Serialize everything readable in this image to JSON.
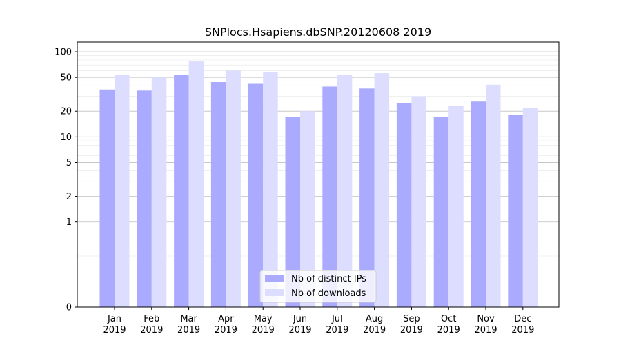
{
  "chart_data": {
    "type": "bar",
    "title": "SNPlocs.Hsapiens.dbSNP.20120608 2019",
    "xlabel": "",
    "ylabel": "",
    "y_scale": "symlog",
    "y_ticks": [
      0,
      1,
      2,
      5,
      10,
      20,
      50,
      100
    ],
    "ylim": [
      0,
      130
    ],
    "grid": true,
    "legend_position": "bottom-center",
    "categories": [
      {
        "month": "Jan",
        "year": "2019"
      },
      {
        "month": "Feb",
        "year": "2019"
      },
      {
        "month": "Mar",
        "year": "2019"
      },
      {
        "month": "Apr",
        "year": "2019"
      },
      {
        "month": "May",
        "year": "2019"
      },
      {
        "month": "Jun",
        "year": "2019"
      },
      {
        "month": "Jul",
        "year": "2019"
      },
      {
        "month": "Aug",
        "year": "2019"
      },
      {
        "month": "Sep",
        "year": "2019"
      },
      {
        "month": "Oct",
        "year": "2019"
      },
      {
        "month": "Nov",
        "year": "2019"
      },
      {
        "month": "Dec",
        "year": "2019"
      }
    ],
    "series": [
      {
        "name": "Nb of distinct IPs",
        "color": "#aaaaff",
        "values": [
          36,
          35,
          54,
          44,
          42,
          17,
          39,
          37,
          25,
          17,
          26,
          18
        ]
      },
      {
        "name": "Nb of downloads",
        "color": "#ddddff",
        "values": [
          54,
          50,
          77,
          60,
          58,
          20,
          54,
          56,
          30,
          23,
          41,
          22
        ]
      }
    ]
  }
}
